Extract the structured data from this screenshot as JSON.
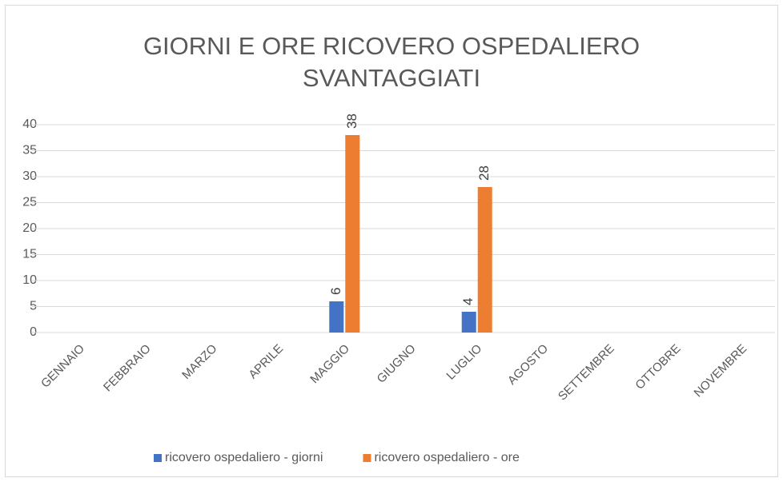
{
  "chart_data": {
    "type": "bar",
    "title": "GIORNI E ORE RICOVERO OSPEDALIERO SVANTAGGIATI",
    "categories": [
      "GENNAIO",
      "FEBBRAIO",
      "MARZO",
      "APRILE",
      "MAGGIO",
      "GIUGNO",
      "LUGLIO",
      "AGOSTO",
      "SETTEMBRE",
      "OTTOBRE",
      "NOVEMBRE"
    ],
    "series": [
      {
        "name": "ricovero ospedaliero - giorni",
        "color": "#4472c4",
        "values": [
          null,
          null,
          null,
          null,
          6,
          null,
          4,
          null,
          null,
          null,
          null
        ]
      },
      {
        "name": "ricovero ospedaliero - ore",
        "color": "#ed7d31",
        "values": [
          null,
          null,
          null,
          null,
          38,
          null,
          28,
          null,
          null,
          null,
          null
        ]
      }
    ],
    "ylim": [
      0,
      40
    ],
    "yticks": [
      0,
      5,
      10,
      15,
      20,
      25,
      30,
      35,
      40
    ],
    "grid": true,
    "legend": "bottom"
  }
}
